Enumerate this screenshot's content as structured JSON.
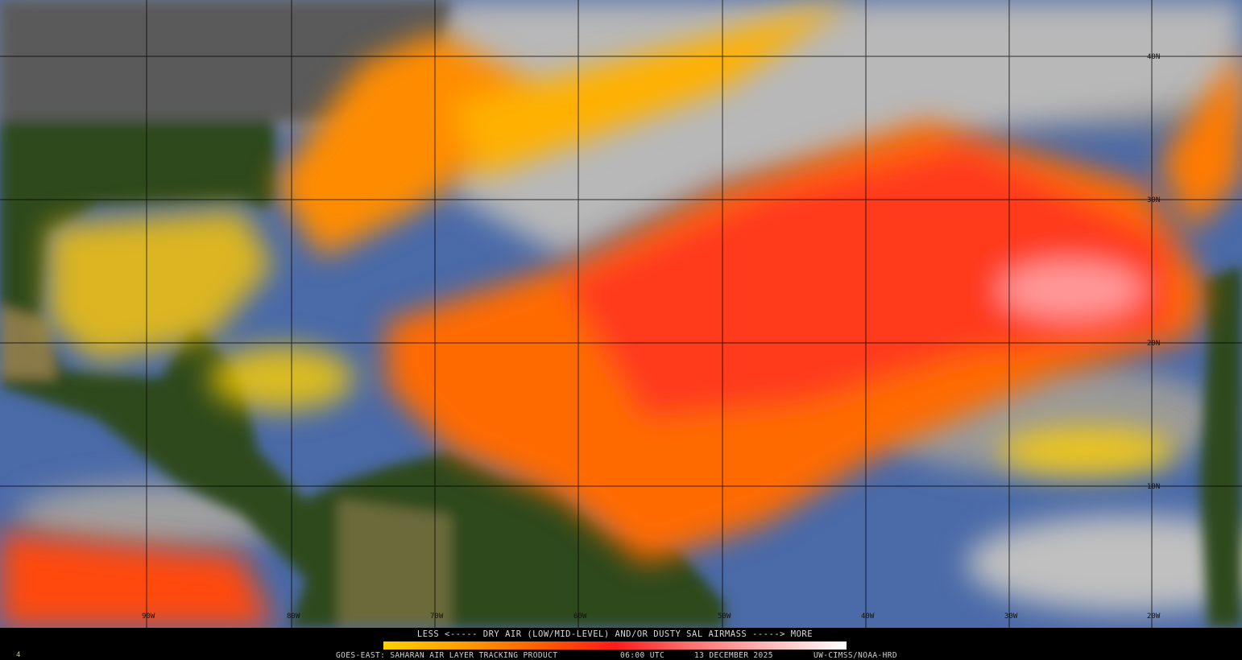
{
  "legend": {
    "title": "LESS <----- DRY AIR (LOW/MID-LEVEL) AND/OR DUSTY SAL AIRMASS -----> MORE",
    "scale_colors": [
      "#ffd200",
      "#ff9a00",
      "#ff5a00",
      "#ff1a1a",
      "#ff6a6a",
      "#ffaaaa",
      "#ffffff"
    ]
  },
  "footer": {
    "product": "GOES-EAST: SAHARAN AIR LAYER TRACKING PRODUCT",
    "time": "06:00 UTC",
    "date": "13 DECEMBER 2025",
    "credit": "UW-CIMSS/NOAA-HRD",
    "corner_mark": "4"
  },
  "grid": {
    "longitudes": [
      "90W",
      "80W",
      "70W",
      "60W",
      "50W",
      "40W",
      "30W",
      "20W"
    ],
    "latitudes": [
      "40N",
      "30N",
      "20N",
      "10N"
    ]
  },
  "colors": {
    "clouds": "#9a9a9a",
    "land": "#2f4a1c",
    "clear_ocean": "#4a6aa8",
    "sal_low": "#ffd200",
    "sal_mid": "#ff6a00",
    "sal_high": "#ff2020"
  }
}
